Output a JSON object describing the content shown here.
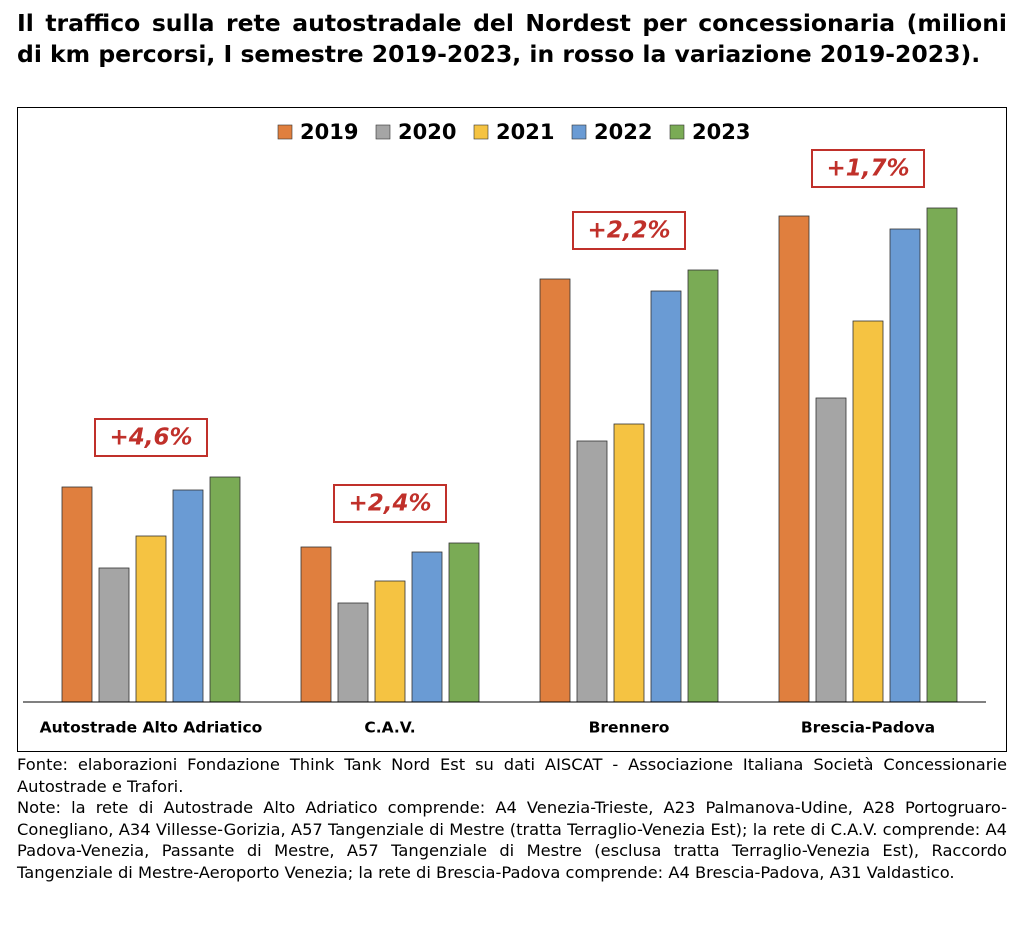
{
  "chart_data": {
    "type": "bar",
    "title": "Il traffico sulla rete autostradale del Nordest per concessionaria (milioni di km percorsi, I semestre 2019-2023, in rosso la variazione 2019-2023).",
    "categories": [
      "Autostrade Alto Adriatico",
      "C.A.V.",
      "Brennero",
      "Brescia-Padova"
    ],
    "series": [
      {
        "name": "2019",
        "color": "#e07f3e",
        "values": [
          215,
          155,
          423,
          486
        ]
      },
      {
        "name": "2020",
        "color": "#a5a5a5",
        "values": [
          134,
          99,
          261,
          304
        ]
      },
      {
        "name": "2021",
        "color": "#f5c342",
        "values": [
          166,
          121,
          278,
          381
        ]
      },
      {
        "name": "2022",
        "color": "#6a9bd4",
        "values": [
          212,
          150,
          411,
          473
        ]
      },
      {
        "name": "2023",
        "color": "#7aab55",
        "values": [
          225,
          159,
          432,
          494
        ]
      }
    ],
    "annotations": [
      "+4,6%",
      "+2,4%",
      "+2,2%",
      "+1,7%"
    ],
    "annotation_color": "#c0302a",
    "ylim": [
      0,
      590
    ],
    "source": "Fonte: elaborazioni Fondazione Think Tank Nord Est su dati AISCAT - Associazione Italiana Società Concessionarie Autostrade e Trafori.",
    "notes": "Note: la rete di Autostrade Alto Adriatico comprende: A4 Venezia-Trieste, A23 Palmanova-Udine, A28 Portogruaro-Conegliano, A34 Villesse-Gorizia, A57 Tangenziale di Mestre (tratta Terraglio-Venezia Est); la rete di C.A.V. comprende: A4 Padova-Venezia, Passante di Mestre, A57 Tangenziale di Mestre (esclusa tratta Terraglio-Venezia Est), Raccordo Tangenziale di Mestre-Aeroporto Venezia; la rete di Brescia-Padova comprende: A4 Brescia-Padova, A31 Valdastico."
  }
}
